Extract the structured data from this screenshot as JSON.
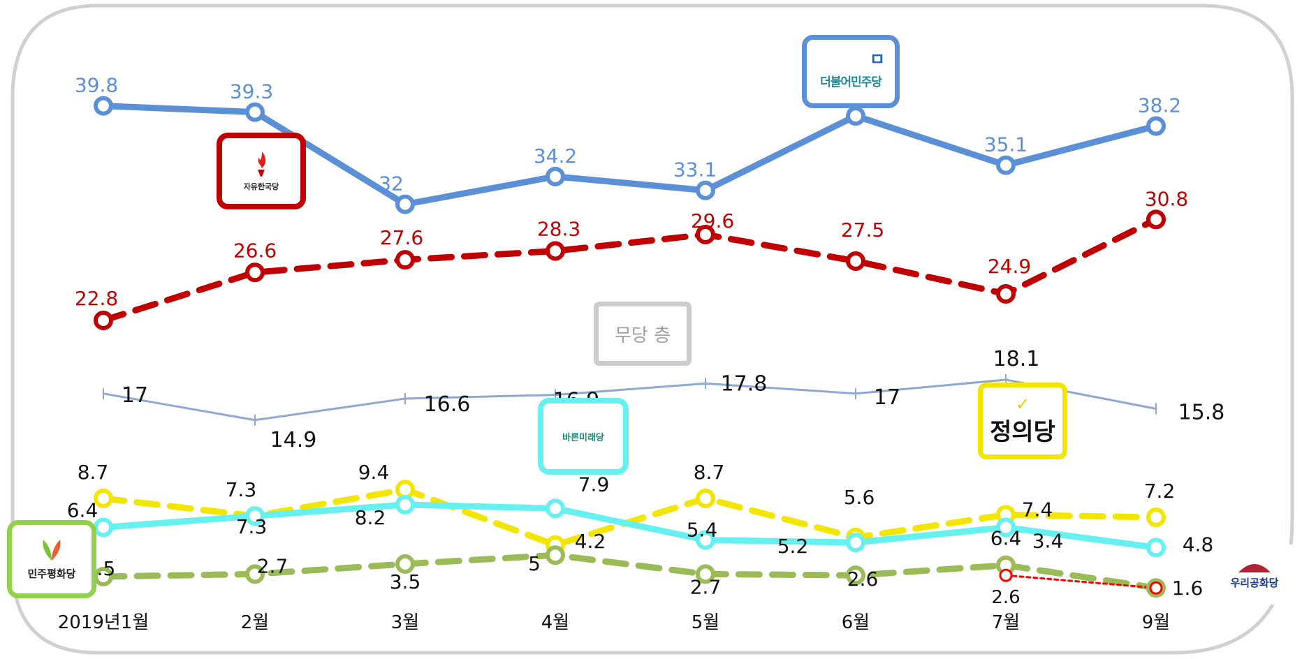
{
  "chart_data": {
    "type": "line",
    "categories": [
      "2019년1월",
      "2월",
      "3월",
      "4월",
      "5월",
      "6월",
      "7월",
      "9월"
    ],
    "ylim": [
      0,
      42
    ],
    "grid": false,
    "series": [
      {
        "name": "더불어민주당",
        "color": "#5b8fd6",
        "style": "solid",
        "values": [
          39.8,
          39.3,
          32,
          34.2,
          33.1,
          39,
          35.1,
          38.2
        ],
        "labels": [
          "39.8",
          "39.3",
          "32",
          "34.2",
          "33.1",
          "39",
          "35.1",
          "38.2"
        ]
      },
      {
        "name": "자유한국당",
        "color": "#c00000",
        "style": "dashed",
        "values": [
          22.8,
          26.6,
          27.6,
          28.3,
          29.6,
          27.5,
          24.9,
          30.8
        ],
        "labels": [
          "22.8",
          "26.6",
          "27.6",
          "28.3",
          "29.6",
          "27.5",
          "24.9",
          "30.8"
        ]
      },
      {
        "name": "무당 층",
        "color": "#8fa8d0",
        "style": "thin",
        "values": [
          17,
          14.9,
          16.6,
          16.9,
          17.8,
          17,
          18.1,
          15.8
        ],
        "labels": [
          "17",
          "14.9",
          "16.6",
          "16.9",
          "17.8",
          "17",
          "18.1",
          "15.8"
        ]
      },
      {
        "name": "정의당",
        "color": "#f2e600",
        "style": "dashed",
        "values": [
          8.7,
          7.3,
          9.4,
          5,
          8.7,
          5.6,
          7.4,
          7.2
        ],
        "labels": [
          "8.7",
          "7.3",
          "9.4",
          "5",
          "8.7",
          "5.6",
          "7.4",
          "7.2"
        ]
      },
      {
        "name": "바른미래당",
        "color": "#66f0f0",
        "style": "solid",
        "values": [
          6.4,
          7.3,
          8.2,
          7.9,
          5.4,
          5.2,
          6.4,
          4.8
        ],
        "labels": [
          "6.4",
          "7.3",
          "8.2",
          "7.9",
          "5.4",
          "5.2",
          "6.4",
          "4.8"
        ]
      },
      {
        "name": "민주평화당",
        "color": "#9bbb59",
        "style": "dashed",
        "values": [
          2.5,
          2.7,
          3.5,
          4.2,
          2.7,
          2.6,
          3.4,
          1.6
        ],
        "labels": [
          "2.5",
          "2.7",
          "3.5",
          "4.2",
          "2.7",
          "2.6",
          "3.4",
          "1.6"
        ]
      },
      {
        "name": "우리공화당",
        "color": "#ff0000",
        "style": "dotted",
        "x": [
          "7월",
          "9월"
        ],
        "values": [
          2.6,
          1.6
        ],
        "labels": [
          "2.6"
        ]
      }
    ]
  },
  "logos": {
    "minju": "더불어민주당",
    "minju_glyph": "ㅁ",
    "hankuk": "자유한국당",
    "mudang": "무당 층",
    "bareun": "바른미래당",
    "jeongui": "정의당",
    "jeongui_check": "✓",
    "pyeonghwa": "민주평화당",
    "gonghwa": "우리공화당"
  }
}
